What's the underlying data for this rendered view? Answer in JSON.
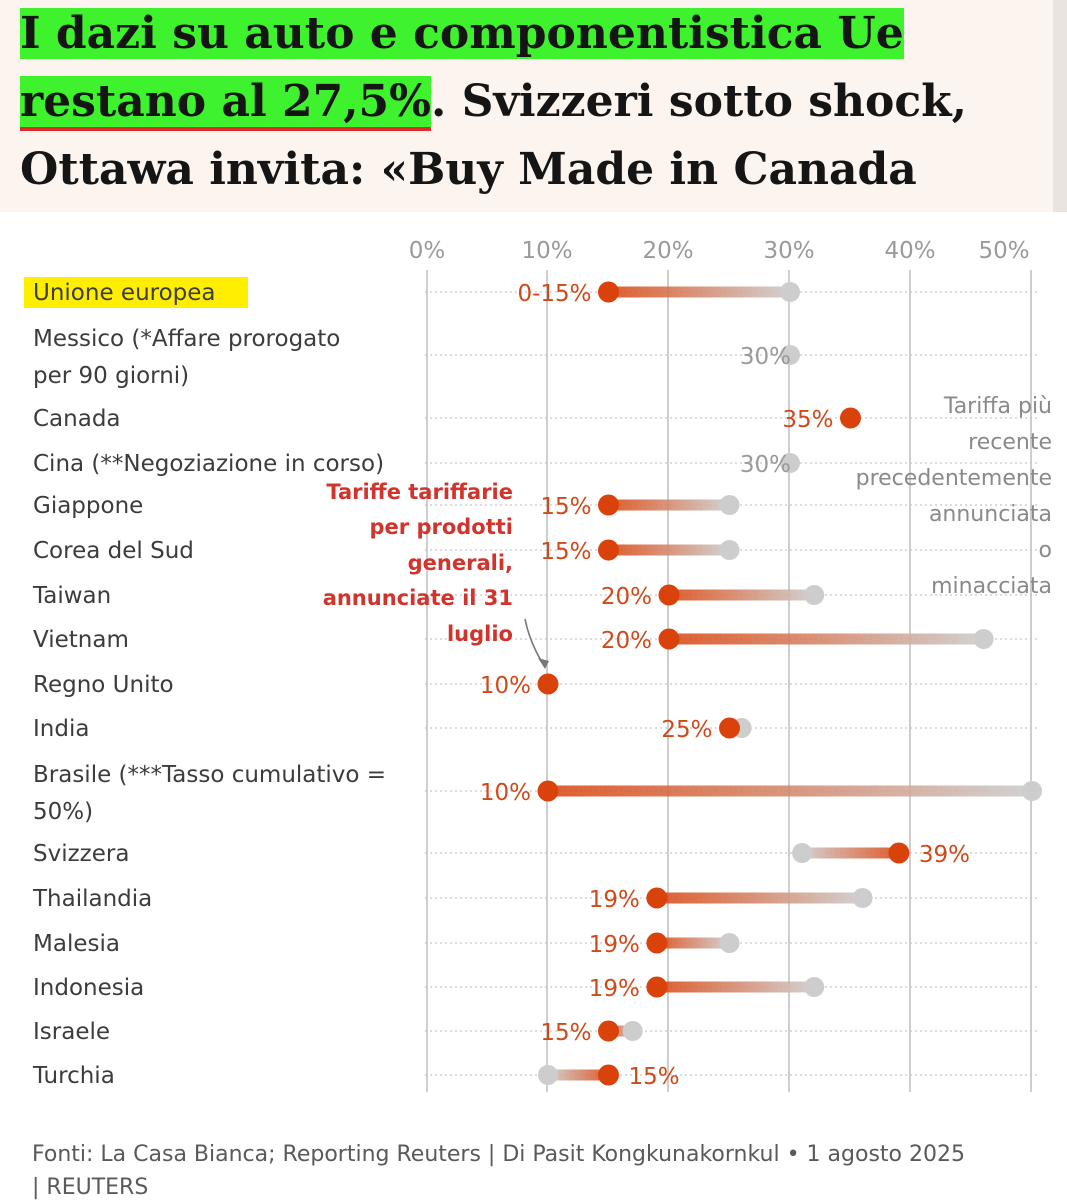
{
  "headline": {
    "highlight_1": "I dazi su auto e componentistica Ue",
    "highlight_2": "restano al 27,5%",
    "rest_1": ". Svizzeri sotto shock,",
    "rest_2": "Ottawa invita: «Buy Made in Canada"
  },
  "chart_data": {
    "type": "dumbbell",
    "x_ticks": [
      "0%",
      "10%",
      "20%",
      "30%",
      "40%",
      "50%"
    ],
    "series_legend": {
      "previous": "Tariffa più recente precedentemente annunciata o minacciata"
    },
    "colors": {
      "new": "#d9420b",
      "previous": "#cdcdcd",
      "highlight_label_bg": "#ffee00",
      "annotation": "#d0342c"
    },
    "rows": [
      {
        "label": "Unione europea",
        "label_lines": [
          "Unione europea"
        ],
        "new": 15,
        "previous": 30,
        "new_label": "0-15%",
        "prev_label": "",
        "highlight": true
      },
      {
        "label": "Messico (*Affare prorogato per 90 giorni)",
        "label_lines": [
          "Messico (*Affare prorogato",
          "per 90 giorni)"
        ],
        "new": null,
        "previous": 30,
        "new_label": "",
        "prev_label": "30%"
      },
      {
        "label": "Canada",
        "label_lines": [
          "Canada"
        ],
        "new": 35,
        "previous": null,
        "new_label": "35%",
        "prev_label": ""
      },
      {
        "label": "Cina (**Negoziazione in corso)",
        "label_lines": [
          "Cina (**Negoziazione in corso)"
        ],
        "new": null,
        "previous": 30,
        "new_label": "",
        "prev_label": "30%"
      },
      {
        "label": "Giappone",
        "label_lines": [
          "Giappone"
        ],
        "new": 15,
        "previous": 25,
        "new_label": "15%",
        "prev_label": ""
      },
      {
        "label": "Corea del Sud",
        "label_lines": [
          "Corea del Sud"
        ],
        "new": 15,
        "previous": 25,
        "new_label": "15%",
        "prev_label": ""
      },
      {
        "label": "Taiwan",
        "label_lines": [
          "Taiwan"
        ],
        "new": 20,
        "previous": 32,
        "new_label": "20%",
        "prev_label": ""
      },
      {
        "label": "Vietnam",
        "label_lines": [
          "Vietnam"
        ],
        "new": 20,
        "previous": 46,
        "new_label": "20%",
        "prev_label": ""
      },
      {
        "label": "Regno Unito",
        "label_lines": [
          "Regno Unito"
        ],
        "new": 10,
        "previous": null,
        "new_label": "10%",
        "prev_label": ""
      },
      {
        "label": "India",
        "label_lines": [
          "India"
        ],
        "new": 25,
        "previous": 26,
        "new_label": "25%",
        "prev_label": ""
      },
      {
        "label": "Brasile (***Tasso cumulativo = 50%)",
        "label_lines": [
          "Brasile (***Tasso cumulativo =",
          "50%)"
        ],
        "new": 10,
        "previous": 50,
        "new_label": "10%",
        "prev_label": ""
      },
      {
        "label": "Svizzera",
        "label_lines": [
          "Svizzera"
        ],
        "new": 39,
        "previous": 31,
        "new_label": "39%",
        "prev_label": ""
      },
      {
        "label": "Thailandia",
        "label_lines": [
          "Thailandia"
        ],
        "new": 19,
        "previous": 36,
        "new_label": "19%",
        "prev_label": ""
      },
      {
        "label": "Malesia",
        "label_lines": [
          "Malesia"
        ],
        "new": 19,
        "previous": 25,
        "new_label": "19%",
        "prev_label": ""
      },
      {
        "label": "Indonesia",
        "label_lines": [
          "Indonesia"
        ],
        "new": 19,
        "previous": 32,
        "new_label": "19%",
        "prev_label": ""
      },
      {
        "label": "Israele",
        "label_lines": [
          "Israele"
        ],
        "new": 15,
        "previous": 17,
        "new_label": "15%",
        "prev_label": ""
      },
      {
        "label": "Turchia",
        "label_lines": [
          "Turchia"
        ],
        "new": 15,
        "previous": 10,
        "new_label": "15%",
        "prev_label": ""
      }
    ],
    "annotation": {
      "text": "Tariffe tariffarie per prodotti generali, annunciate il 31 luglio",
      "lines": [
        "Tariffe tariffarie",
        "per prodotti",
        "generali,",
        "annunciate il 31",
        "luglio"
      ]
    }
  },
  "source": {
    "line1": "Fonti: La Casa Bianca; Reporting Reuters | Di Pasit Kongkunakornkul • 1 agosto 2025",
    "line2": "| REUTERS"
  }
}
